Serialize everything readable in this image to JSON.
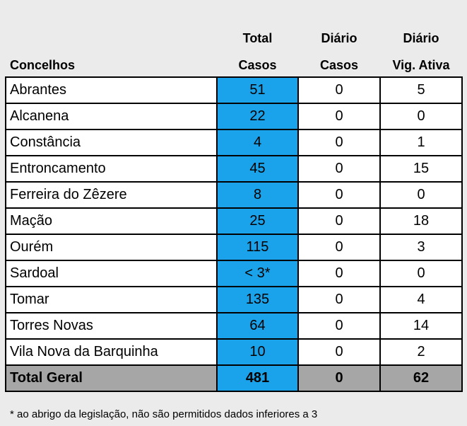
{
  "header": {
    "concelhos": "Concelhos",
    "total_line1": "Total",
    "total_line2": "Casos",
    "diario_line1": "Diário",
    "diario_line2": "Casos",
    "vig_line1": "Diário",
    "vig_line2": "Vig. Ativa"
  },
  "rows": [
    {
      "name": "Abrantes",
      "total": "51",
      "diario": "0",
      "vig": "5"
    },
    {
      "name": "Alcanena",
      "total": "22",
      "diario": "0",
      "vig": "0"
    },
    {
      "name": "Constância",
      "total": "4",
      "diario": "0",
      "vig": "1"
    },
    {
      "name": "Entroncamento",
      "total": "45",
      "diario": "0",
      "vig": "15"
    },
    {
      "name": "Ferreira do Zêzere",
      "total": "8",
      "diario": "0",
      "vig": "0"
    },
    {
      "name": "Mação",
      "total": "25",
      "diario": "0",
      "vig": "18"
    },
    {
      "name": "Ourém",
      "total": "115",
      "diario": "0",
      "vig": "3"
    },
    {
      "name": "Sardoal",
      "total": "< 3*",
      "diario": "0",
      "vig": "0"
    },
    {
      "name": "Tomar",
      "total": "135",
      "diario": "0",
      "vig": "4"
    },
    {
      "name": "Torres Novas",
      "total": "64",
      "diario": "0",
      "vig": "14"
    },
    {
      "name": "Vila Nova da Barquinha",
      "total": "10",
      "diario": "0",
      "vig": "2"
    }
  ],
  "total_row": {
    "name": "Total Geral",
    "total": "481",
    "diario": "0",
    "vig": "62"
  },
  "footnote": "* ao abrigo da legislação, não são permitidos dados inferiores a 3",
  "colors": {
    "highlight": "#1aa3ea",
    "total_bg": "#a6a6a6",
    "page_bg": "#ebebeb"
  }
}
